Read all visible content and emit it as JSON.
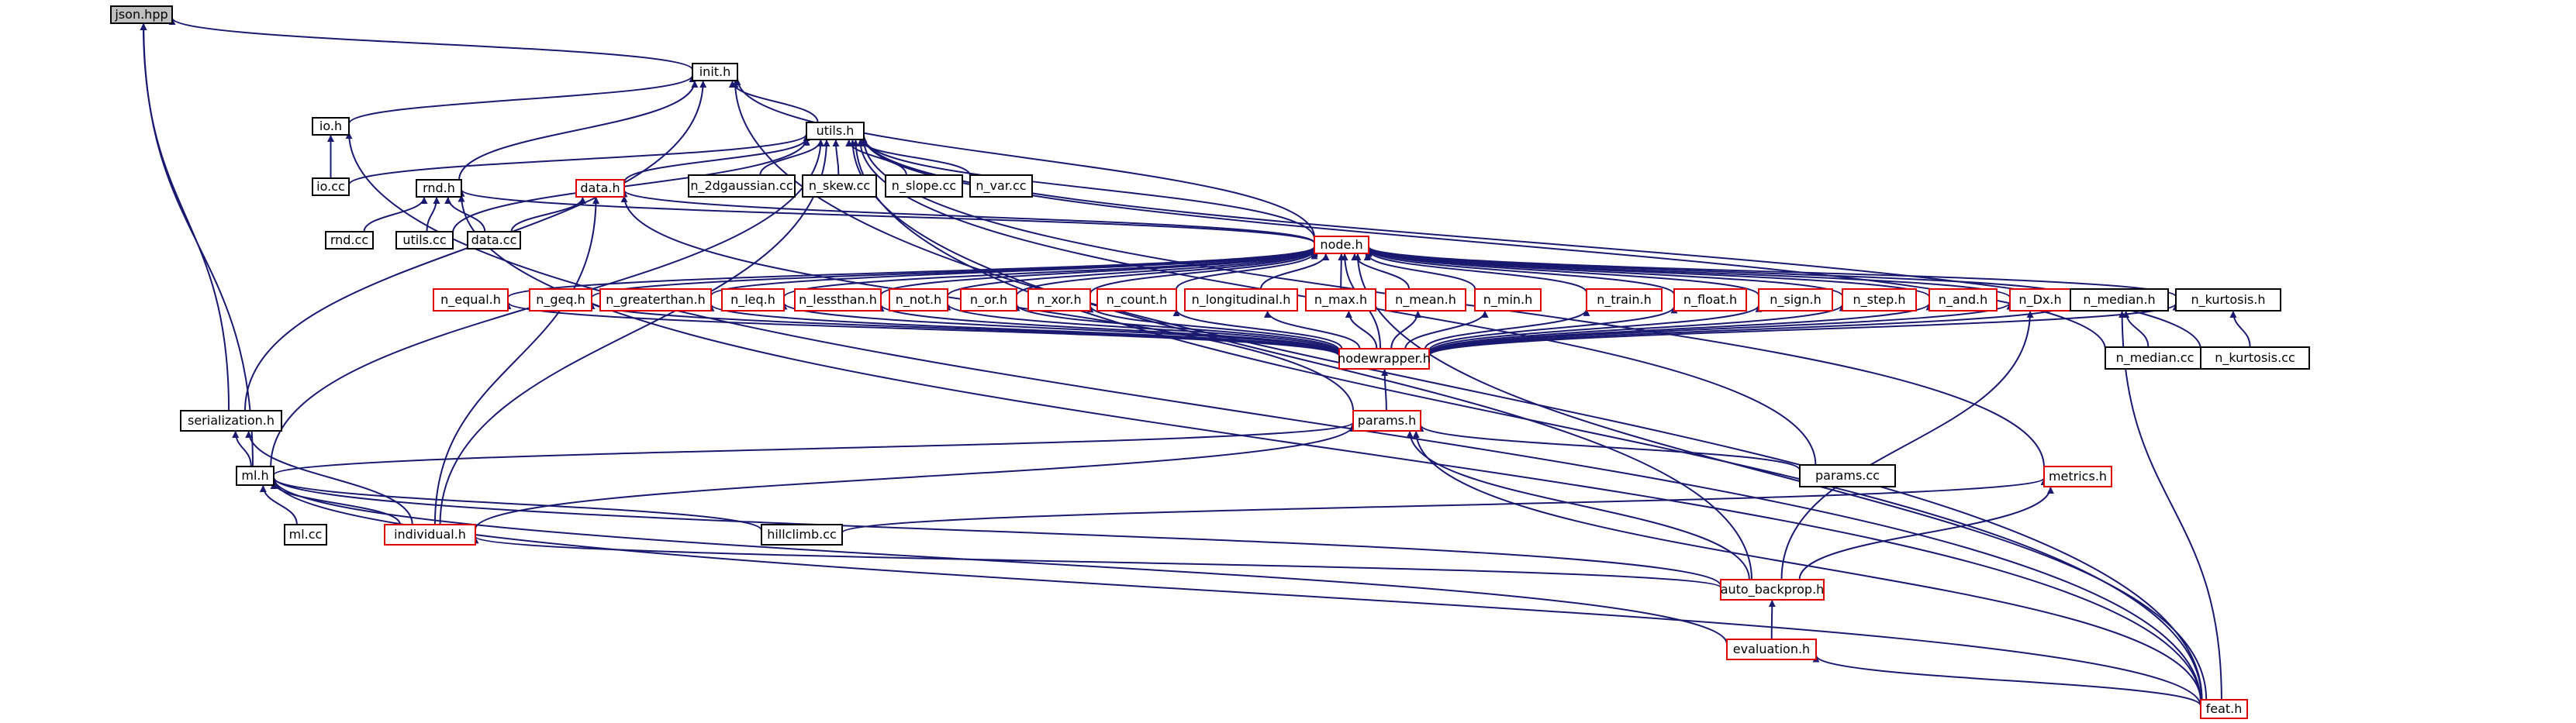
{
  "colors": {
    "edge": "#191970",
    "black_border": "#000000",
    "red_border": "#e00000",
    "highlight_fill": "#bfbfbf",
    "fill": "#ffffff"
  },
  "nodes": [
    {
      "id": "json_hpp",
      "label": "json.hpp",
      "border": "black",
      "highlight": true
    },
    {
      "id": "init_h",
      "label": "init.h",
      "border": "black"
    },
    {
      "id": "io_h",
      "label": "io.h",
      "border": "black"
    },
    {
      "id": "io_cc",
      "label": "io.cc",
      "border": "black"
    },
    {
      "id": "utils_h",
      "label": "utils.h",
      "border": "black"
    },
    {
      "id": "rnd_h",
      "label": "rnd.h",
      "border": "black"
    },
    {
      "id": "rnd_cc",
      "label": "rnd.cc",
      "border": "black"
    },
    {
      "id": "utils_cc",
      "label": "utils.cc",
      "border": "black"
    },
    {
      "id": "data_h",
      "label": "data.h",
      "border": "red"
    },
    {
      "id": "data_cc",
      "label": "data.cc",
      "border": "black"
    },
    {
      "id": "n_2dgaussian",
      "label": "n_2dgaussian.cc",
      "border": "black"
    },
    {
      "id": "n_skew",
      "label": "n_skew.cc",
      "border": "black"
    },
    {
      "id": "n_slope",
      "label": "n_slope.cc",
      "border": "black"
    },
    {
      "id": "n_var",
      "label": "n_var.cc",
      "border": "black"
    },
    {
      "id": "node_h",
      "label": "node.h",
      "border": "red"
    },
    {
      "id": "n_equal",
      "label": "n_equal.h",
      "border": "red"
    },
    {
      "id": "n_geq",
      "label": "n_geq.h",
      "border": "red"
    },
    {
      "id": "n_greaterthan",
      "label": "n_greaterthan.h",
      "border": "red"
    },
    {
      "id": "n_leq",
      "label": "n_leq.h",
      "border": "red"
    },
    {
      "id": "n_lessthan",
      "label": "n_lessthan.h",
      "border": "red"
    },
    {
      "id": "n_not",
      "label": "n_not.h",
      "border": "red"
    },
    {
      "id": "n_or",
      "label": "n_or.h",
      "border": "red"
    },
    {
      "id": "n_xor",
      "label": "n_xor.h",
      "border": "red"
    },
    {
      "id": "n_count",
      "label": "n_count.h",
      "border": "red"
    },
    {
      "id": "n_longitudinal",
      "label": "n_longitudinal.h",
      "border": "red"
    },
    {
      "id": "n_max",
      "label": "n_max.h",
      "border": "red"
    },
    {
      "id": "n_mean",
      "label": "n_mean.h",
      "border": "red"
    },
    {
      "id": "n_min",
      "label": "n_min.h",
      "border": "red"
    },
    {
      "id": "n_train",
      "label": "n_train.h",
      "border": "red"
    },
    {
      "id": "n_float",
      "label": "n_float.h",
      "border": "red"
    },
    {
      "id": "n_sign",
      "label": "n_sign.h",
      "border": "red"
    },
    {
      "id": "n_step",
      "label": "n_step.h",
      "border": "red"
    },
    {
      "id": "n_and",
      "label": "n_and.h",
      "border": "red"
    },
    {
      "id": "n_dx",
      "label": "n_Dx.h",
      "border": "red"
    },
    {
      "id": "n_median_h",
      "label": "n_median.h",
      "border": "black"
    },
    {
      "id": "n_kurtosis_h",
      "label": "n_kurtosis.h",
      "border": "black"
    },
    {
      "id": "n_median_cc",
      "label": "n_median.cc",
      "border": "black"
    },
    {
      "id": "n_kurtosis_cc",
      "label": "n_kurtosis.cc",
      "border": "black"
    },
    {
      "id": "nodewrapper_h",
      "label": "nodewrapper.h",
      "border": "red"
    },
    {
      "id": "params_h",
      "label": "params.h",
      "border": "red"
    },
    {
      "id": "params_cc",
      "label": "params.cc",
      "border": "black"
    },
    {
      "id": "serialization_h",
      "label": "serialization.h",
      "border": "black"
    },
    {
      "id": "ml_h",
      "label": "ml.h",
      "border": "black"
    },
    {
      "id": "ml_cc",
      "label": "ml.cc",
      "border": "black"
    },
    {
      "id": "individual_h",
      "label": "individual.h",
      "border": "red"
    },
    {
      "id": "hillclimb_cc",
      "label": "hillclimb.cc",
      "border": "black"
    },
    {
      "id": "metrics_h",
      "label": "metrics.h",
      "border": "red"
    },
    {
      "id": "auto_backprop_h",
      "label": "auto_backprop.h",
      "border": "red"
    },
    {
      "id": "evaluation_h",
      "label": "evaluation.h",
      "border": "red"
    },
    {
      "id": "feat_h",
      "label": "feat.h",
      "border": "red"
    }
  ],
  "edges": [
    [
      "init_h",
      "json_hpp"
    ],
    [
      "serialization_h",
      "json_hpp"
    ],
    [
      "ml_h",
      "json_hpp"
    ],
    [
      "io_h",
      "init_h"
    ],
    [
      "utils_h",
      "init_h"
    ],
    [
      "rnd_h",
      "init_h"
    ],
    [
      "node_h",
      "init_h"
    ],
    [
      "serialization_h",
      "init_h"
    ],
    [
      "feat_h",
      "init_h"
    ],
    [
      "io_cc",
      "io_h"
    ],
    [
      "feat_h",
      "io_h"
    ],
    [
      "io_cc",
      "utils_h"
    ],
    [
      "utils_cc",
      "utils_h"
    ],
    [
      "data_h",
      "utils_h"
    ],
    [
      "n_2dgaussian",
      "utils_h"
    ],
    [
      "n_skew",
      "utils_h"
    ],
    [
      "n_slope",
      "utils_h"
    ],
    [
      "n_var",
      "utils_h"
    ],
    [
      "node_h",
      "utils_h"
    ],
    [
      "n_median_cc",
      "utils_h"
    ],
    [
      "n_kurtosis_cc",
      "utils_h"
    ],
    [
      "ml_h",
      "utils_h"
    ],
    [
      "individual_h",
      "utils_h"
    ],
    [
      "params_cc",
      "utils_h"
    ],
    [
      "metrics_h",
      "utils_h"
    ],
    [
      "auto_backprop_h",
      "utils_h"
    ],
    [
      "feat_h",
      "utils_h"
    ],
    [
      "rnd_cc",
      "rnd_h"
    ],
    [
      "utils_cc",
      "rnd_h"
    ],
    [
      "data_cc",
      "rnd_h"
    ],
    [
      "node_h",
      "rnd_h"
    ],
    [
      "feat_h",
      "rnd_h"
    ],
    [
      "data_cc",
      "data_h"
    ],
    [
      "node_h",
      "data_h"
    ],
    [
      "params_h",
      "data_h"
    ],
    [
      "individual_h",
      "data_h"
    ],
    [
      "n_equal",
      "node_h"
    ],
    [
      "n_geq",
      "node_h"
    ],
    [
      "n_greaterthan",
      "node_h"
    ],
    [
      "n_leq",
      "node_h"
    ],
    [
      "n_lessthan",
      "node_h"
    ],
    [
      "n_not",
      "node_h"
    ],
    [
      "n_or",
      "node_h"
    ],
    [
      "n_xor",
      "node_h"
    ],
    [
      "n_count",
      "node_h"
    ],
    [
      "n_longitudinal",
      "node_h"
    ],
    [
      "n_max",
      "node_h"
    ],
    [
      "n_mean",
      "node_h"
    ],
    [
      "n_min",
      "node_h"
    ],
    [
      "n_train",
      "node_h"
    ],
    [
      "n_float",
      "node_h"
    ],
    [
      "n_sign",
      "node_h"
    ],
    [
      "n_step",
      "node_h"
    ],
    [
      "n_and",
      "node_h"
    ],
    [
      "n_dx",
      "node_h"
    ],
    [
      "n_median_h",
      "node_h"
    ],
    [
      "n_kurtosis_h",
      "node_h"
    ],
    [
      "nodewrapper_h",
      "node_h"
    ],
    [
      "feat_h",
      "node_h"
    ],
    [
      "nodewrapper_h",
      "n_equal"
    ],
    [
      "nodewrapper_h",
      "n_geq"
    ],
    [
      "nodewrapper_h",
      "n_greaterthan"
    ],
    [
      "nodewrapper_h",
      "n_leq"
    ],
    [
      "nodewrapper_h",
      "n_lessthan"
    ],
    [
      "nodewrapper_h",
      "n_not"
    ],
    [
      "nodewrapper_h",
      "n_or"
    ],
    [
      "nodewrapper_h",
      "n_xor"
    ],
    [
      "nodewrapper_h",
      "n_count"
    ],
    [
      "nodewrapper_h",
      "n_longitudinal"
    ],
    [
      "nodewrapper_h",
      "n_max"
    ],
    [
      "nodewrapper_h",
      "n_mean"
    ],
    [
      "nodewrapper_h",
      "n_min"
    ],
    [
      "nodewrapper_h",
      "n_train"
    ],
    [
      "nodewrapper_h",
      "n_float"
    ],
    [
      "nodewrapper_h",
      "n_sign"
    ],
    [
      "nodewrapper_h",
      "n_step"
    ],
    [
      "nodewrapper_h",
      "n_and"
    ],
    [
      "nodewrapper_h",
      "n_dx"
    ],
    [
      "auto_backprop_h",
      "n_dx"
    ],
    [
      "nodewrapper_h",
      "n_median_h"
    ],
    [
      "n_median_cc",
      "n_median_h"
    ],
    [
      "feat_h",
      "n_median_h"
    ],
    [
      "nodewrapper_h",
      "n_kurtosis_h"
    ],
    [
      "n_kurtosis_cc",
      "n_kurtosis_h"
    ],
    [
      "params_h",
      "nodewrapper_h"
    ],
    [
      "ml_h",
      "params_h"
    ],
    [
      "individual_h",
      "params_h"
    ],
    [
      "params_cc",
      "params_h"
    ],
    [
      "auto_backprop_h",
      "params_h"
    ],
    [
      "feat_h",
      "params_h"
    ],
    [
      "ml_h",
      "serialization_h"
    ],
    [
      "individual_h",
      "serialization_h"
    ],
    [
      "ml_cc",
      "ml_h"
    ],
    [
      "individual_h",
      "ml_h"
    ],
    [
      "hillclimb_cc",
      "ml_h"
    ],
    [
      "auto_backprop_h",
      "ml_h"
    ],
    [
      "evaluation_h",
      "ml_h"
    ],
    [
      "feat_h",
      "ml_h"
    ],
    [
      "hillclimb_cc",
      "metrics_h"
    ],
    [
      "auto_backprop_h",
      "metrics_h"
    ],
    [
      "auto_backprop_h",
      "individual_h"
    ],
    [
      "evaluation_h",
      "auto_backprop_h"
    ],
    [
      "feat_h",
      "evaluation_h"
    ]
  ]
}
